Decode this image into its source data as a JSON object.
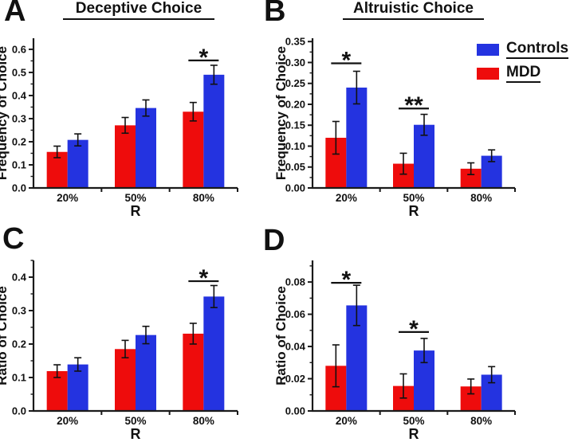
{
  "figure": {
    "colors": {
      "controls": "#2433e0",
      "mdd": "#ee0c0c",
      "axis": "#1a1a1a",
      "text": "#111111"
    },
    "legend": {
      "items": [
        {
          "label": "Controls",
          "color_key": "controls"
        },
        {
          "label": "MDD",
          "color_key": "mdd"
        }
      ]
    }
  },
  "chart_data": [
    {
      "type": "bar",
      "panel_label": "A",
      "title": "Deceptive Choice",
      "ylabel": "Frequency of Choice",
      "xlabel": "R",
      "categories": [
        "20%",
        "50%",
        "80%"
      ],
      "y_axis": {
        "max_label": 0.6,
        "major_step": 0.1,
        "minor_step": 0.05,
        "decimals": 1,
        "axis_top": 0.648
      },
      "legend_position": "none",
      "grid": false,
      "series": [
        {
          "name": "MDD",
          "color_key": "mdd",
          "values": [
            0.156,
            0.271,
            0.33
          ],
          "errors": [
            0.025,
            0.034,
            0.04
          ]
        },
        {
          "name": "Controls",
          "color_key": "controls",
          "values": [
            0.208,
            0.346,
            0.49
          ],
          "errors": [
            0.026,
            0.035,
            0.041
          ]
        }
      ],
      "significance": [
        {
          "category_index": 2,
          "label": "*",
          "y": 0.552
        }
      ]
    },
    {
      "type": "bar",
      "panel_label": "B",
      "title": "Altruistic Choice",
      "ylabel": "Frequency of Choice",
      "xlabel": "R",
      "categories": [
        "20%",
        "50%",
        "80%"
      ],
      "y_axis": {
        "max_label": 0.35,
        "major_step": 0.05,
        "minor_step": 0.025,
        "decimals": 2,
        "axis_top": 0.358
      },
      "legend_position": "top-right",
      "grid": false,
      "series": [
        {
          "name": "MDD",
          "color_key": "mdd",
          "values": [
            0.12,
            0.058,
            0.046
          ],
          "errors": [
            0.039,
            0.025,
            0.014
          ]
        },
        {
          "name": "Controls",
          "color_key": "controls",
          "values": [
            0.24,
            0.151,
            0.077
          ],
          "errors": [
            0.039,
            0.025,
            0.014
          ]
        }
      ],
      "significance": [
        {
          "category_index": 0,
          "label": "*",
          "y": 0.298
        },
        {
          "category_index": 1,
          "label": "**",
          "y": 0.19
        }
      ]
    },
    {
      "type": "bar",
      "panel_label": "C",
      "title": "",
      "ylabel": "Ratio of Choice",
      "xlabel": "R",
      "categories": [
        "20%",
        "50%",
        "80%"
      ],
      "y_axis": {
        "max_label": 0.4,
        "major_step": 0.1,
        "minor_step": 0.05,
        "decimals": 1,
        "axis_top": 0.45
      },
      "legend_position": "none",
      "grid": false,
      "series": [
        {
          "name": "MDD",
          "color_key": "mdd",
          "values": [
            0.119,
            0.185,
            0.231
          ],
          "errors": [
            0.019,
            0.026,
            0.031
          ]
        },
        {
          "name": "Controls",
          "color_key": "controls",
          "values": [
            0.139,
            0.227,
            0.342
          ],
          "errors": [
            0.02,
            0.026,
            0.033
          ]
        }
      ],
      "significance": [
        {
          "category_index": 2,
          "label": "*",
          "y": 0.388
        }
      ]
    },
    {
      "type": "bar",
      "panel_label": "D",
      "title": "",
      "ylabel": "Ratio of Choice",
      "xlabel": "R",
      "categories": [
        "20%",
        "50%",
        "80%"
      ],
      "y_axis": {
        "max_label": 0.08,
        "major_step": 0.02,
        "minor_step": 0.01,
        "decimals": 2,
        "axis_top": 0.0934
      },
      "legend_position": "none",
      "grid": false,
      "series": [
        {
          "name": "MDD",
          "color_key": "mdd",
          "values": [
            0.028,
            0.0155,
            0.0152
          ],
          "errors": [
            0.013,
            0.0075,
            0.0046
          ]
        },
        {
          "name": "Controls",
          "color_key": "controls",
          "values": [
            0.0655,
            0.0375,
            0.0225
          ],
          "errors": [
            0.0125,
            0.0075,
            0.005
          ]
        }
      ],
      "significance": [
        {
          "category_index": 0,
          "label": "*",
          "y": 0.0795
        },
        {
          "category_index": 1,
          "label": "*",
          "y": 0.049
        }
      ]
    }
  ]
}
